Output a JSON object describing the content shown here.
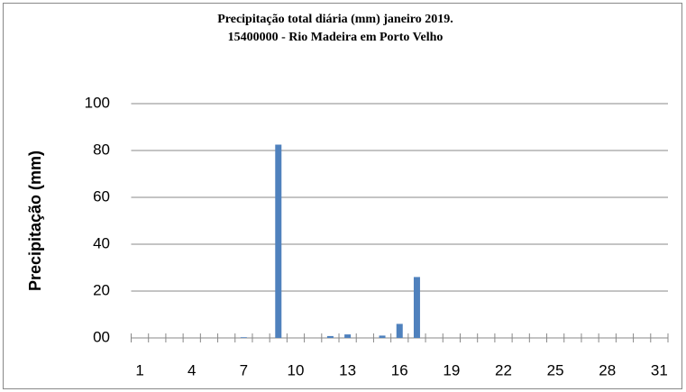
{
  "chart_data": {
    "type": "bar",
    "title": "Precipitação total diária (mm) janeiro 2019.",
    "subtitle": "15400000  - Rio Madeira em Porto Velho",
    "y_label": "Precipitação (mm)",
    "categories": [
      1,
      null,
      null,
      4,
      null,
      null,
      7,
      null,
      null,
      10,
      null,
      null,
      13,
      null,
      null,
      16,
      null,
      null,
      19,
      null,
      null,
      22,
      null,
      null,
      25,
      null,
      null,
      28,
      null,
      null,
      31
    ],
    "values": [
      0,
      0,
      0,
      0,
      0,
      0,
      0.3,
      0,
      82.5,
      0,
      0,
      0.8,
      1.5,
      0,
      1,
      6,
      26,
      0,
      0,
      0,
      0,
      0,
      0,
      0,
      0,
      0,
      0,
      0,
      0,
      0,
      0
    ],
    "color": "#4f81bd",
    "ylim": [
      0,
      100
    ],
    "yticks": [
      {
        "value": 0,
        "label": "00"
      },
      20,
      40,
      60,
      80,
      100
    ],
    "grid": true
  }
}
